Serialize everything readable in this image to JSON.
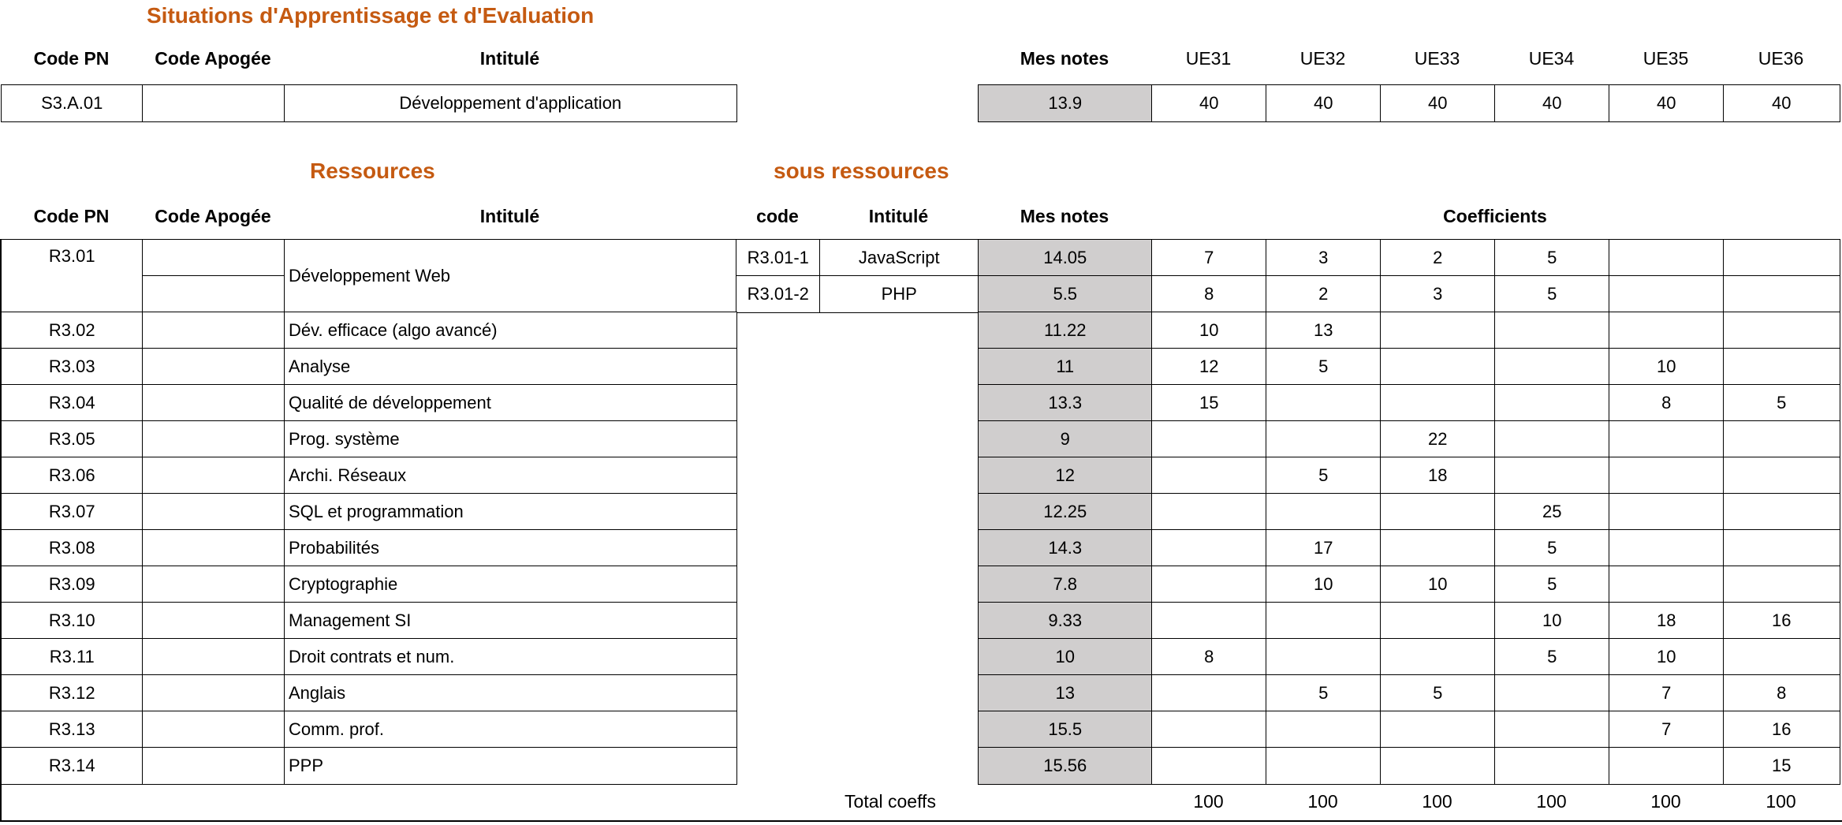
{
  "sae": {
    "title": "Situations d'Apprentissage et d'Evaluation",
    "headers": {
      "code_pn": "Code PN",
      "code_apogee": "Code Apogée",
      "intitule": "Intitulé",
      "mes_notes": "Mes notes"
    },
    "ue_headers": [
      "UE31",
      "UE32",
      "UE33",
      "UE34",
      "UE35",
      "UE36"
    ],
    "row": {
      "code_pn": "S3.A.01",
      "code_apogee": "",
      "intitule": "Développement d'application",
      "note": "13.9",
      "coeffs": [
        "40",
        "40",
        "40",
        "40",
        "40",
        "40"
      ]
    }
  },
  "ressources": {
    "title": "Ressources",
    "sous_title": "sous ressources",
    "headers": {
      "code_pn": "Code PN",
      "code_apogee": "Code Apogée",
      "intitule": "Intitulé",
      "code": "code",
      "sub_intitule": "Intitulé",
      "mes_notes": "Mes notes",
      "coefficients": "Coefficients"
    },
    "first": {
      "code_pn": "R3.01",
      "intitule": "Développement Web",
      "subs": [
        {
          "code": "R3.01-1",
          "intitule": "JavaScript",
          "note": "14.05",
          "coeffs": [
            "7",
            "3",
            "2",
            "5",
            "",
            ""
          ]
        },
        {
          "code": "R3.01-2",
          "intitule": "PHP",
          "note": "5.5",
          "coeffs": [
            "8",
            "2",
            "3",
            "5",
            "",
            ""
          ]
        }
      ]
    },
    "rows": [
      {
        "code_pn": "R3.02",
        "intitule": "Dév. efficace (algo avancé)",
        "note": "11.22",
        "coeffs": [
          "10",
          "13",
          "",
          "",
          "",
          ""
        ]
      },
      {
        "code_pn": "R3.03",
        "intitule": "Analyse",
        "note": "11",
        "coeffs": [
          "12",
          "5",
          "",
          "",
          "10",
          ""
        ]
      },
      {
        "code_pn": "R3.04",
        "intitule": "Qualité de développement",
        "note": "13.3",
        "coeffs": [
          "15",
          "",
          "",
          "",
          "8",
          "5"
        ]
      },
      {
        "code_pn": "R3.05",
        "intitule": "Prog. système",
        "note": "9",
        "coeffs": [
          "",
          "",
          "22",
          "",
          "",
          ""
        ]
      },
      {
        "code_pn": "R3.06",
        "intitule": "Archi. Réseaux",
        "note": "12",
        "coeffs": [
          "",
          "5",
          "18",
          "",
          "",
          ""
        ]
      },
      {
        "code_pn": "R3.07",
        "intitule": "SQL et programmation",
        "note": "12.25",
        "coeffs": [
          "",
          "",
          "",
          "25",
          "",
          ""
        ]
      },
      {
        "code_pn": "R3.08",
        "intitule": "Probabilités",
        "note": "14.3",
        "coeffs": [
          "",
          "17",
          "",
          "5",
          "",
          ""
        ]
      },
      {
        "code_pn": "R3.09",
        "intitule": "Cryptographie",
        "note": "7.8",
        "coeffs": [
          "",
          "10",
          "10",
          "5",
          "",
          ""
        ]
      },
      {
        "code_pn": "R3.10",
        "intitule": "Management SI",
        "note": "9.33",
        "coeffs": [
          "",
          "",
          "",
          "10",
          "18",
          "16"
        ]
      },
      {
        "code_pn": "R3.11",
        "intitule": "Droit contrats et num.",
        "note": "10",
        "coeffs": [
          "8",
          "",
          "",
          "5",
          "10",
          ""
        ]
      },
      {
        "code_pn": "R3.12",
        "intitule": "Anglais",
        "note": "13",
        "coeffs": [
          "",
          "5",
          "5",
          "",
          "7",
          "8"
        ]
      },
      {
        "code_pn": "R3.13",
        "intitule": "Comm. prof.",
        "note": "15.5",
        "coeffs": [
          "",
          "",
          "",
          "",
          "7",
          "16"
        ]
      },
      {
        "code_pn": "R3.14",
        "intitule": "PPP",
        "note": "15.56",
        "coeffs": [
          "",
          "",
          "",
          "",
          "",
          "15"
        ]
      }
    ],
    "total_label": "Total coeffs",
    "totals": [
      "100",
      "100",
      "100",
      "100",
      "100",
      "100"
    ]
  }
}
